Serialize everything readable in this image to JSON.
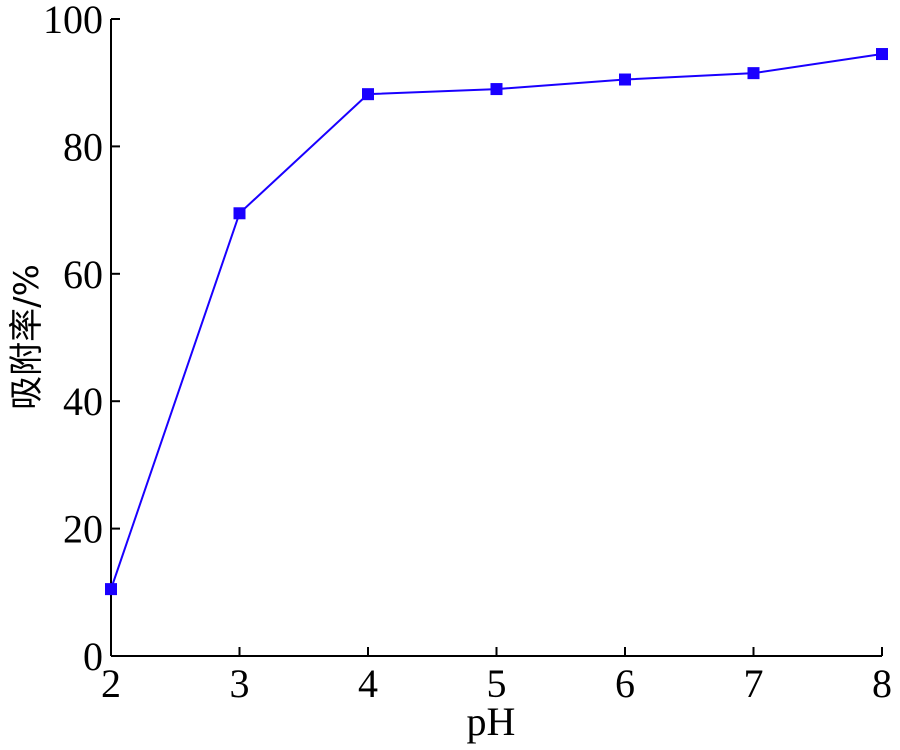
{
  "chart_data": {
    "type": "line",
    "xlabel": "pH",
    "ylabel": "吸附率/%",
    "x": [
      2,
      3,
      4,
      5,
      6,
      7,
      8
    ],
    "series": [
      {
        "values": [
          10.5,
          69.5,
          88.2,
          89.0,
          90.5,
          91.5,
          94.5
        ],
        "color": "#1a00ff",
        "marker": "square"
      }
    ],
    "xlim": [
      2,
      8
    ],
    "ylim": [
      0,
      100
    ],
    "xticks": [
      2,
      3,
      4,
      5,
      6,
      7,
      8
    ],
    "yticks": [
      0,
      20,
      40,
      60,
      80,
      100
    ],
    "grid": false,
    "legend": "none"
  }
}
